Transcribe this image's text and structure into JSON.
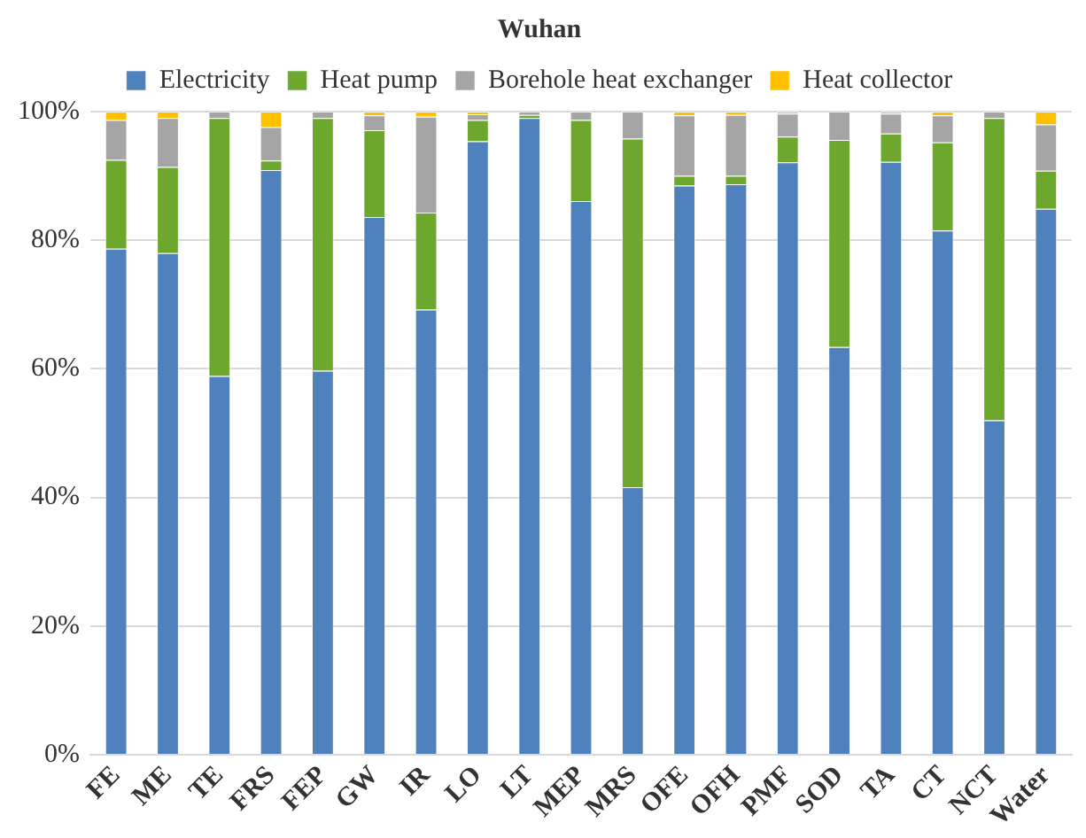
{
  "chart_data": {
    "type": "bar",
    "title": "Wuhan",
    "stacked": true,
    "legend": "top",
    "grid": "y",
    "categories": [
      "FE",
      "ME",
      "TE",
      "FRS",
      "FEP",
      "GW",
      "IR",
      "LO",
      "LT",
      "MEP",
      "MRS",
      "OFE",
      "OFH",
      "PMF",
      "SOD",
      "TA",
      "CT",
      "NCT",
      "Water"
    ],
    "series": [
      {
        "name": "Electricity",
        "color": "#4f81bd",
        "values": [
          78.7,
          78.0,
          58.9,
          90.9,
          59.7,
          83.6,
          69.2,
          95.4,
          99.0,
          86.1,
          41.6,
          88.5,
          88.7,
          92.1,
          63.4,
          92.2,
          81.5,
          52.0,
          84.9
        ]
      },
      {
        "name": "Heat pump",
        "color": "#6ea72e",
        "values": [
          13.8,
          13.4,
          40.1,
          1.5,
          39.3,
          13.5,
          15.1,
          3.3,
          0.5,
          12.6,
          54.2,
          1.5,
          1.3,
          4.0,
          32.2,
          4.4,
          13.7,
          47.0,
          5.9
        ]
      },
      {
        "name": "Borehole heat exchanger",
        "color": "#a5a5a5",
        "values": [
          6.2,
          7.6,
          1.0,
          5.2,
          1.0,
          2.3,
          14.9,
          0.9,
          0.5,
          1.3,
          4.2,
          9.4,
          9.5,
          3.6,
          4.4,
          3.1,
          4.2,
          1.0,
          7.2
        ]
      },
      {
        "name": "Heat collector",
        "color": "#ffc000",
        "values": [
          1.3,
          1.0,
          0,
          2.4,
          0,
          0.6,
          0.8,
          0.4,
          0,
          0,
          0,
          0.6,
          0.5,
          0.3,
          0,
          0.3,
          0.6,
          0,
          2.0
        ]
      }
    ],
    "ylim": [
      0,
      100
    ],
    "yticks": [
      {
        "value": 0,
        "label": "0%"
      },
      {
        "value": 20,
        "label": "20%"
      },
      {
        "value": 40,
        "label": "40%"
      },
      {
        "value": 60,
        "label": "60%"
      },
      {
        "value": 80,
        "label": "80%"
      },
      {
        "value": 100,
        "label": "100%"
      }
    ]
  }
}
